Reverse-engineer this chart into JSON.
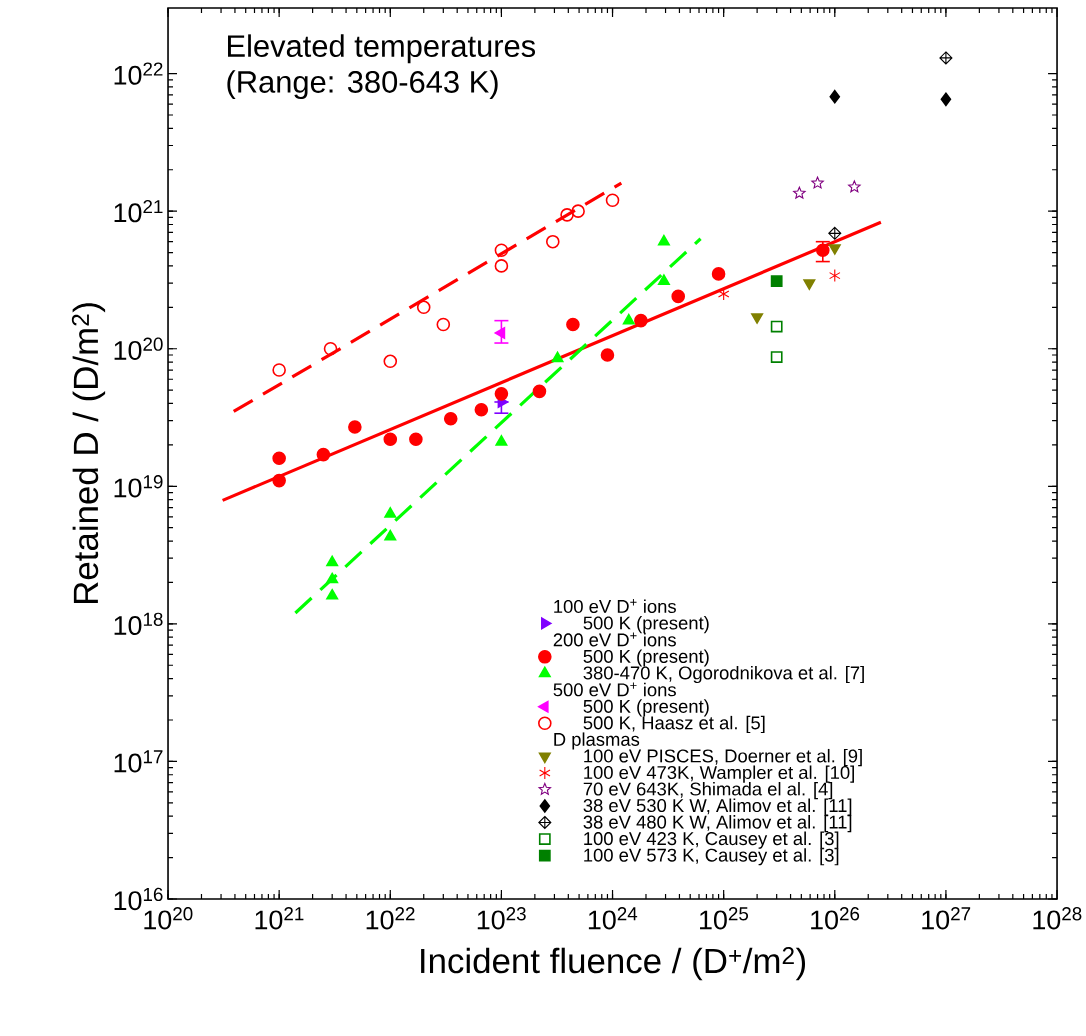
{
  "chart_data": {
    "type": "scatter",
    "title": "Elevated temperatures",
    "subtitle": "(Range: 380-643 K)",
    "xlabel": "Incident fluence / (D$^{+}$/m$^{2}$)",
    "ylabel": "Retained D / (D/m$^{2}$)",
    "log": "xy",
    "grid": false,
    "legend": "bottom right",
    "xlim": [
      1e+20,
      1e+28
    ],
    "ylim": [
      1e+16,
      3e+22
    ],
    "xticks": [
      {
        "value": 1e+20,
        "label": "10$^{20}$"
      },
      {
        "value": 1e+21,
        "label": "10$^{21}$"
      },
      {
        "value": 1e+22,
        "label": "10$^{22}$"
      },
      {
        "value": 1e+23,
        "label": "10$^{23}$"
      },
      {
        "value": 1e+24,
        "label": "10$^{24}$"
      },
      {
        "value": 1e+25,
        "label": "10$^{25}$"
      },
      {
        "value": 1e+26,
        "label": "10$^{26}$"
      },
      {
        "value": 1e+27,
        "label": "10$^{27}$"
      },
      {
        "value": 1e+28,
        "label": "10$^{28}$"
      }
    ],
    "yticks": [
      {
        "value": 1e+16,
        "label": "10$^{16}$"
      },
      {
        "value": 1e+17,
        "label": "10$^{17}$"
      },
      {
        "value": 1e+18,
        "label": "10$^{18}$"
      },
      {
        "value": 1e+19,
        "label": "10$^{19}$"
      },
      {
        "value": 1e+20,
        "label": "10$^{20}$"
      },
      {
        "value": 1e+21,
        "label": "10$^{21}$"
      },
      {
        "value": 1e+22,
        "label": "10$^{22}$"
      }
    ],
    "annotations": [
      "100 eV D$^{+}$ ions",
      "200 eV D$^{+}$ ions",
      "500 eV D$^{+}$ ions",
      "D plasmas"
    ],
    "series": [
      {
        "name": "500 K (present)",
        "color": "#7f00ff",
        "marker": "triangle-right",
        "x": [
          1e+23
        ],
        "values": [
          4.1e+19
        ],
        "errors": [
          [
            3.4e+19,
            4.1e+19
          ]
        ]
      },
      {
        "name": "500 K (present)",
        "color": "#ff0000",
        "marker": "circle",
        "x": [
          1e+21,
          1e+21,
          2.5e+21,
          4.8e+21,
          1e+22,
          1.7e+22,
          3.5e+22,
          6.6e+22,
          1e+23,
          2.2e+23,
          4.4e+23,
          9e+23,
          1.8e+24,
          3.9e+24,
          9e+24,
          7.8e+25
        ],
        "values": [
          1.1e+19,
          1.6e+19,
          1.7e+19,
          2.7e+19,
          2.2e+19,
          2.2e+19,
          3.1e+19,
          3.6e+19,
          4.7e+19,
          4.9e+19,
          1.5e+20,
          9e+19,
          1.6e+20,
          2.4e+20,
          3.5e+20,
          5.2e+20
        ],
        "errors": [
          null,
          null,
          null,
          null,
          null,
          null,
          null,
          null,
          null,
          null,
          null,
          null,
          null,
          null,
          null,
          [
            4.3e+20,
            6e+20
          ]
        ]
      },
      {
        "name": "380-470 K, Ogorodnikova et al. [7]",
        "color": "#00ff00",
        "marker": "triangle",
        "x": [
          3e+21,
          3e+21,
          3e+21,
          1e+22,
          1e+22,
          1e+23,
          3.2e+23,
          1.4e+24,
          2.9e+24,
          2.9e+24
        ],
        "values": [
          2.8e+18,
          2.1e+18,
          1.6e+18,
          6.3e+18,
          4.3e+18,
          2.1e+19,
          8.5e+19,
          1.6e+20,
          3.1e+20,
          6e+20
        ]
      },
      {
        "name": "500 K (present)",
        "color": "#ff00ff",
        "marker": "triangle-left",
        "x": [
          1e+23
        ],
        "values": [
          1.3e+20
        ],
        "errors": [
          [
            1.1e+20,
            1.6e+20
          ]
        ]
      },
      {
        "name": "500 K, Haasz et al. [5]",
        "color": "#ff0000",
        "marker": "circle-open",
        "x": [
          1e+21,
          2.9e+21,
          1e+22,
          2e+22,
          3e+22,
          1e+23,
          1e+23,
          2.9e+23,
          3.9e+23,
          4.9e+23,
          1e+24
        ],
        "values": [
          7e+19,
          1e+20,
          8.1e+19,
          2e+20,
          1.5e+20,
          4e+20,
          5.2e+20,
          6e+20,
          9.4e+20,
          1e+21,
          1.2e+21
        ]
      },
      {
        "name": "100 eV PISCES, Doerner et al. [9]",
        "color": "#808000",
        "marker": "triangle-down",
        "x": [
          2e+25,
          5.9e+25,
          1e+26
        ],
        "values": [
          1.7e+20,
          3e+20,
          5.4e+20
        ]
      },
      {
        "name": "100 eV 473K, Wampler et al. [10]",
        "color": "#ff0000",
        "marker": "cross",
        "x": [
          1e+25,
          1e+26
        ],
        "values": [
          2.5e+20,
          3.4e+20
        ]
      },
      {
        "name": "70 eV   643K, Shimada el al. [4]",
        "color": "#800080",
        "marker": "star",
        "x": [
          4.8e+25,
          7e+25,
          1.5e+26
        ],
        "values": [
          1.35e+21,
          1.6e+21,
          1.5e+21
        ]
      },
      {
        "name": "38 eV   530 K W, Alimov et al. [11]",
        "color": "#000000",
        "marker": "diamond",
        "x": [
          1e+26,
          1e+27
        ],
        "values": [
          6.8e+21,
          6.5e+21
        ]
      },
      {
        "name": "38 eV   480 K W, Alimov et al. [11]",
        "color": "#000000",
        "x": [
          1e+26,
          1e+27
        ],
        "values": [
          6.9e+20,
          1.3e+22
        ]
      },
      {
        "name": "100 eV 423 K, Causey et al. [3]",
        "color": "#008000",
        "marker": "square-open",
        "x": [
          3e+25,
          3e+25
        ],
        "values": [
          1.45e+20,
          8.7e+19
        ]
      },
      {
        "name": "100 eV 573 K, Causey et al. [3]",
        "color": "#008000",
        "marker": "square",
        "x": [
          3e+25
        ],
        "values": [
          3.1e+20
        ]
      },
      {
        "type": "line",
        "color": "#ff0000",
        "line_style": "solid",
        "x": [
          3.1e+20,
          2.6e+26
        ],
        "values": [
          7.9e+18,
          8.3e+20
        ]
      },
      {
        "type": "line",
        "color": "#ff0000",
        "line_style": "dashed",
        "x": [
          3.9e+20,
          1.2e+24
        ],
        "values": [
          3.5e+19,
          1.6e+21
        ]
      },
      {
        "type": "line",
        "color": "#00ff00",
        "line_style": "dashed",
        "x": [
          1.4e+21,
          6.2e+24
        ],
        "values": [
          1.2e+18,
          6.3e+20
        ]
      }
    ]
  }
}
